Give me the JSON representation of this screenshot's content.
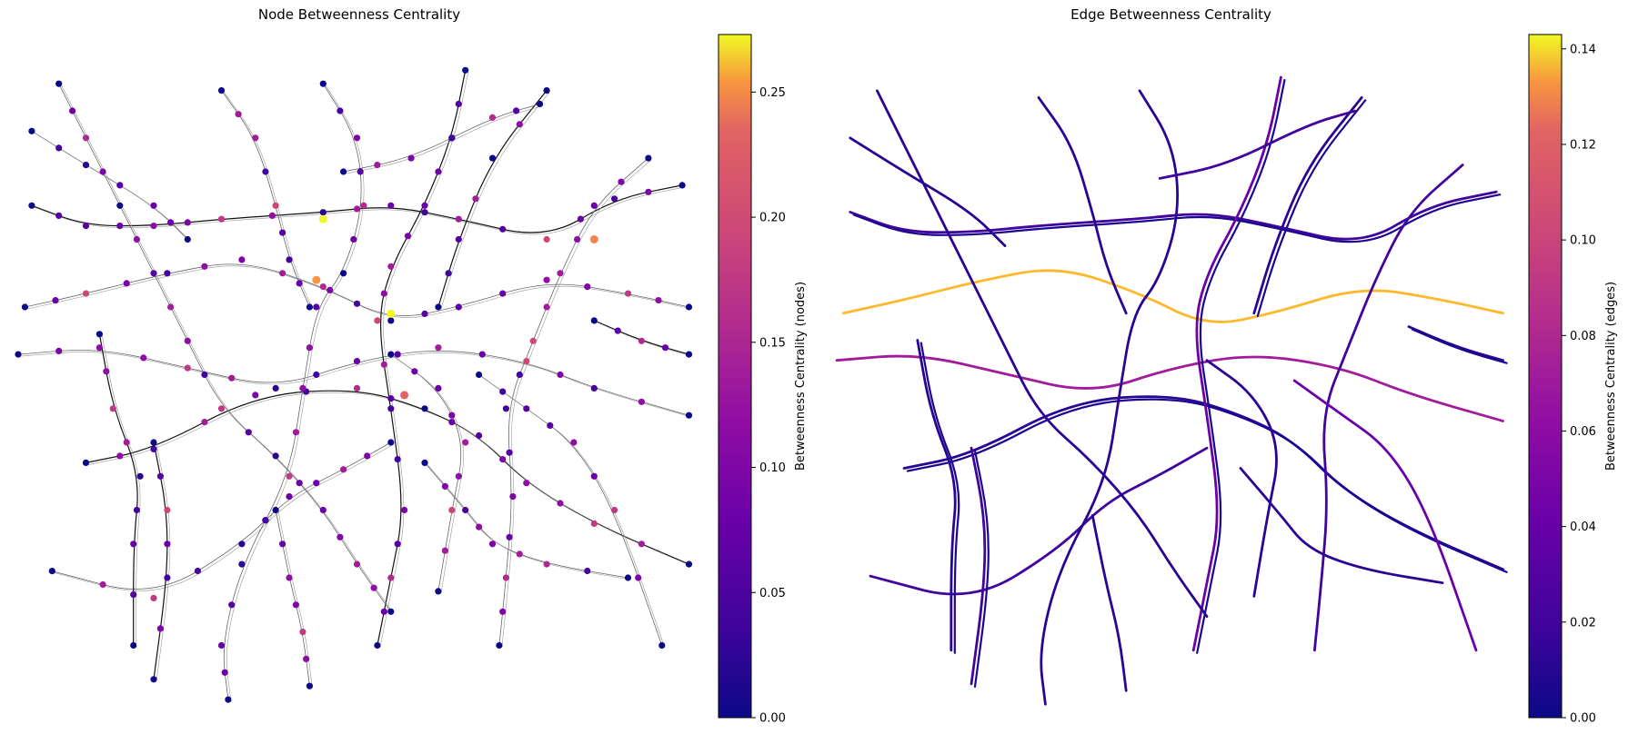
{
  "left_panel": {
    "title": "Node Betweenness Centrality",
    "colorbar": {
      "label": "Betweenness Centrality (nodes)",
      "ticks": [
        "0.00",
        "0.05",
        "0.10",
        "0.15",
        "0.20",
        "0.25"
      ],
      "range": [
        0,
        0.273
      ]
    }
  },
  "right_panel": {
    "title": "Edge Betweenness Centrality",
    "colorbar": {
      "label": "Betweenness Centrality (edges)",
      "ticks": [
        "0.00",
        "0.02",
        "0.04",
        "0.06",
        "0.08",
        "0.10",
        "0.12",
        "0.14"
      ],
      "range": [
        0,
        0.143
      ]
    }
  },
  "colormap": "plasma"
}
